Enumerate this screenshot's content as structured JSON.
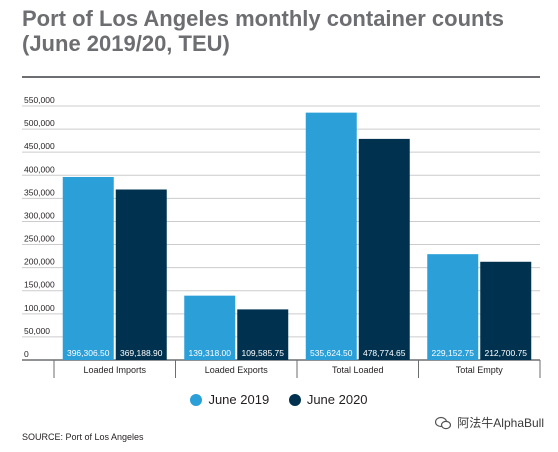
{
  "title_lines": [
    "Port of Los Angeles monthly container counts",
    "(June 2019/20, TEU)"
  ],
  "source": "SOURCE: Port of Los Angeles",
  "watermark": "阿法牛AlphaBull",
  "colors": {
    "june_2019": "#2a9fd8",
    "june_2020": "#00324f",
    "axis": "#6d6e71",
    "grid": "#cccccc"
  },
  "chart_data": {
    "type": "bar",
    "title": "Port of Los Angeles monthly container counts (June 2019/20, TEU)",
    "categories": [
      "Loaded Imports",
      "Loaded Exports",
      "Total Loaded",
      "Total Empty"
    ],
    "series": [
      {
        "name": "June 2019",
        "values": [
          396306.5,
          139318.0,
          535624.5,
          229152.75
        ],
        "labels": [
          "396,306.50",
          "139,318.00",
          "535,624.50",
          "229,152.75"
        ]
      },
      {
        "name": "June 2020",
        "values": [
          369188.9,
          109585.75,
          478774.65,
          212700.75
        ],
        "labels": [
          "369,188.90",
          "109,585.75",
          "478,774.65",
          "212,700.75"
        ]
      }
    ],
    "yticks": [
      0,
      50000,
      100000,
      150000,
      200000,
      250000,
      300000,
      350000,
      400000,
      450000,
      500000,
      550000
    ],
    "ytick_labels": [
      "0",
      "50,000",
      "100,000",
      "150,000",
      "200,000",
      "250,000",
      "300,000",
      "350,000",
      "400,000",
      "450,000",
      "500,000",
      "550,000"
    ],
    "ylim": [
      0,
      550000
    ],
    "grid": true,
    "legend": "bottom-center",
    "xlabel": "",
    "ylabel": ""
  }
}
